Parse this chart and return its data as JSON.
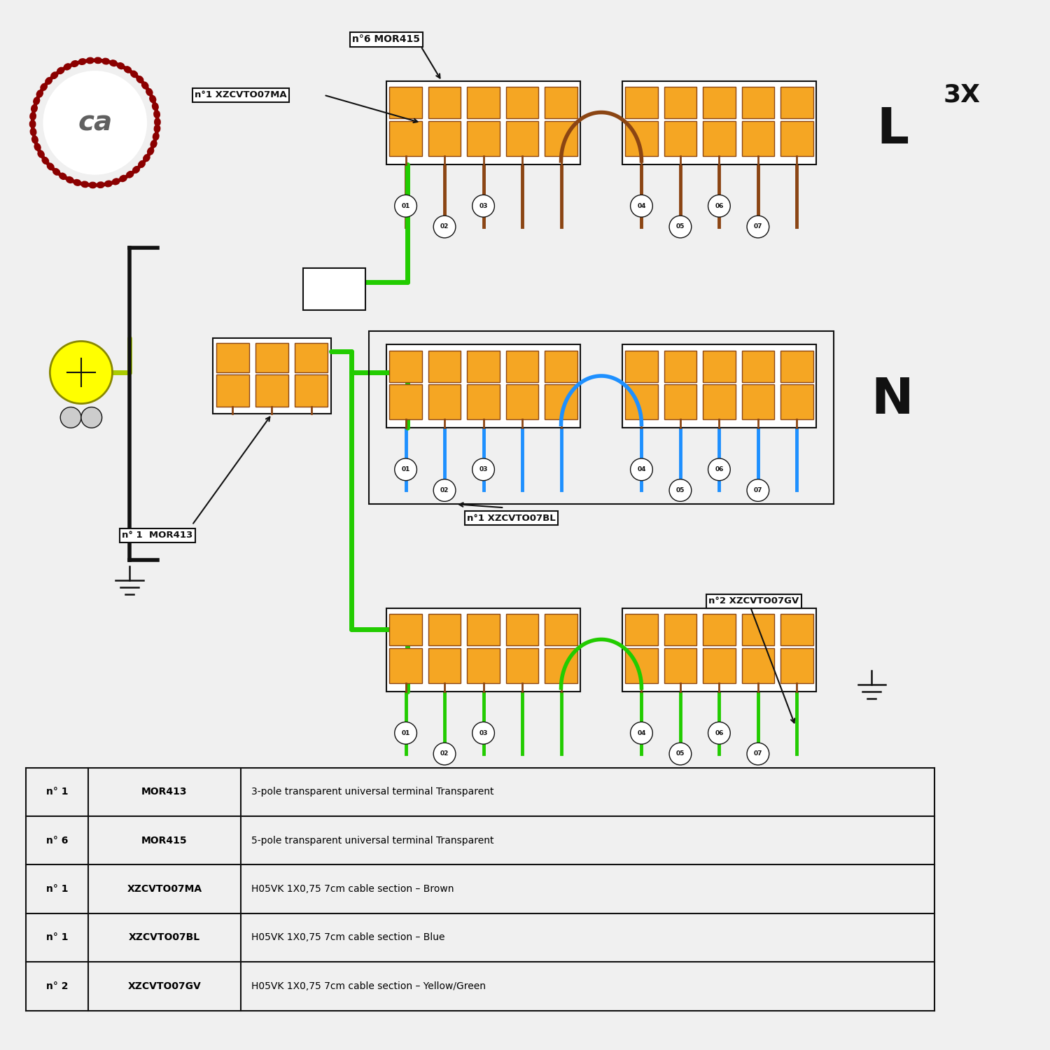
{
  "bg_color": "#f0f0f0",
  "orange": "#F5A623",
  "dark_orange": "#A0522D",
  "brown": "#8B4513",
  "blue": "#1E90FF",
  "green": "#22CC00",
  "yellow": "#FFFF00",
  "yg_wire": "#ADFF00",
  "rope_color": "#8B0000",
  "black": "#111111",
  "white": "#FFFFFF",
  "label_mor413": "n° 1  MOR413",
  "label_mor415": "n°6 MOR415",
  "label_xzcvto07ma": "n°1 XZCVTO07MA",
  "label_xzcvto07bl": "n°1 XZCVTO07BL",
  "label_xzcvto07gv": "n°2 XZCVTO07GV",
  "label_L": "L",
  "label_3X": "3X",
  "label_N": "N",
  "table_rows": [
    [
      "n° 1",
      "MOR413",
      "3-pole transparent universal terminal Transparent"
    ],
    [
      "n° 6",
      "MOR415",
      "5-pole transparent universal terminal Transparent"
    ],
    [
      "n° 1",
      "XZCVTO07MA",
      "H05VK 1X0,75 7cm cable section – Brown"
    ],
    [
      "n° 1",
      "XZCVTO07BL",
      "H05VK 1X0,75 7cm cable section – Blue"
    ],
    [
      "n° 2",
      "XZCVTO07GV",
      "H05VK 1X0,75 7cm cable section – Yellow/Green"
    ]
  ]
}
